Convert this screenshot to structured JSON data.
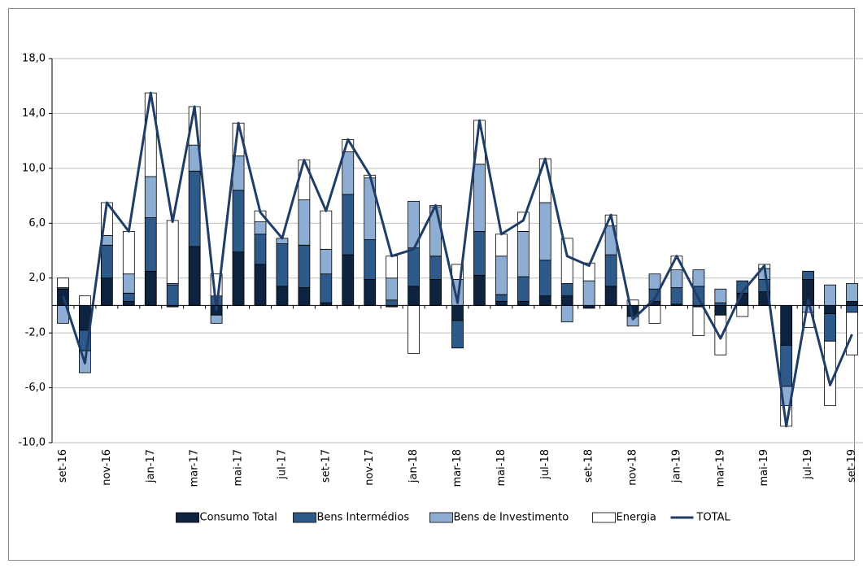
{
  "chart_data": {
    "type": "bar",
    "stacked": true,
    "categories": [
      "set-16",
      null,
      "nov-16",
      null,
      "jan-17",
      null,
      "mar-17",
      null,
      "mai-17",
      null,
      "jul-17",
      null,
      "set-17",
      null,
      "nov-17",
      null,
      "jan-18",
      null,
      "mar-18",
      null,
      "mai-18",
      null,
      "jul-18",
      null,
      "set-18",
      null,
      "nov-18",
      null,
      "jan-19",
      null,
      "mar-19",
      null,
      "mai-19",
      null,
      "jul-19",
      null,
      "set-19"
    ],
    "series": [
      {
        "name": "Consumo Total",
        "color": "#0d2340",
        "values": [
          1.2,
          -1.8,
          2.0,
          0.3,
          2.5,
          -0.1,
          4.3,
          -0.7,
          3.9,
          3.0,
          1.4,
          1.3,
          0.2,
          3.7,
          1.9,
          -0.1,
          1.4,
          1.9,
          -1.1,
          2.2,
          0.3,
          0.3,
          0.7,
          0.7,
          -0.2,
          1.4,
          -0.8,
          0.3,
          0.1,
          -0.1,
          -0.7,
          0.9,
          1.0,
          -2.9,
          1.9,
          -0.6,
          0.3
        ]
      },
      {
        "name": "Bens Intermédios",
        "color": "#2e5a8a",
        "values": [
          0.1,
          -1.5,
          2.4,
          0.6,
          3.9,
          1.5,
          5.5,
          0.7,
          4.5,
          2.2,
          3.1,
          3.1,
          2.1,
          4.4,
          2.9,
          0.4,
          2.8,
          1.7,
          -2.0,
          3.2,
          0.5,
          1.8,
          2.6,
          0.9,
          0.0,
          2.3,
          0.0,
          0.9,
          1.2,
          1.4,
          0.2,
          0.9,
          0.9,
          -3.0,
          0.6,
          -2.0,
          -0.5
        ]
      },
      {
        "name": "Bens de Investimento",
        "color": "#8eadd3",
        "values": [
          -1.3,
          -1.6,
          0.7,
          1.4,
          3.0,
          0.1,
          1.9,
          -0.6,
          2.5,
          0.9,
          0.4,
          3.3,
          1.8,
          3.1,
          4.5,
          1.6,
          3.4,
          3.6,
          1.9,
          4.9,
          2.8,
          3.3,
          4.2,
          -1.2,
          1.8,
          2.1,
          -0.7,
          1.1,
          1.3,
          1.2,
          1.0,
          0.0,
          0.8,
          -1.4,
          -0.5,
          1.5,
          1.3
        ]
      },
      {
        "name": "Energia",
        "color": "#ffffff",
        "values": [
          0.7,
          0.7,
          2.4,
          3.1,
          6.1,
          4.6,
          2.8,
          1.6,
          2.4,
          0.8,
          0.0,
          2.9,
          2.8,
          0.9,
          0.2,
          1.6,
          -3.5,
          0.1,
          1.1,
          3.2,
          1.6,
          1.4,
          3.2,
          3.3,
          1.3,
          0.8,
          0.4,
          -1.3,
          1.0,
          -2.1,
          -2.9,
          -0.8,
          0.3,
          -1.5,
          -1.1,
          -4.7,
          -3.1
        ]
      },
      {
        "name": "TOTAL",
        "color": "#1f3d66",
        "type": "line",
        "values": [
          0.7,
          -4.2,
          7.5,
          5.4,
          15.5,
          6.1,
          14.5,
          -0.3,
          13.3,
          6.8,
          4.9,
          10.6,
          6.9,
          12.1,
          9.5,
          3.6,
          4.1,
          7.3,
          0.2,
          13.5,
          5.2,
          6.2,
          10.7,
          3.6,
          2.9,
          6.6,
          -1.0,
          0.5,
          3.6,
          0.5,
          -2.4,
          1.0,
          2.9,
          -8.8,
          0.4,
          -5.8,
          -2.1
        ]
      }
    ],
    "ylim": [
      -10,
      18
    ],
    "yticks": [
      {
        "value": -10,
        "label": "-10,0"
      },
      {
        "value": -6,
        "label": "-6,0"
      },
      {
        "value": -2,
        "label": "-2,0"
      },
      {
        "value": 2,
        "label": "2,0"
      },
      {
        "value": 6,
        "label": "6,0"
      },
      {
        "value": 10,
        "label": "10,0"
      },
      {
        "value": 14,
        "label": "14,0"
      },
      {
        "value": 18,
        "label": "18,0"
      }
    ],
    "grid": true,
    "legend": "bottom"
  }
}
